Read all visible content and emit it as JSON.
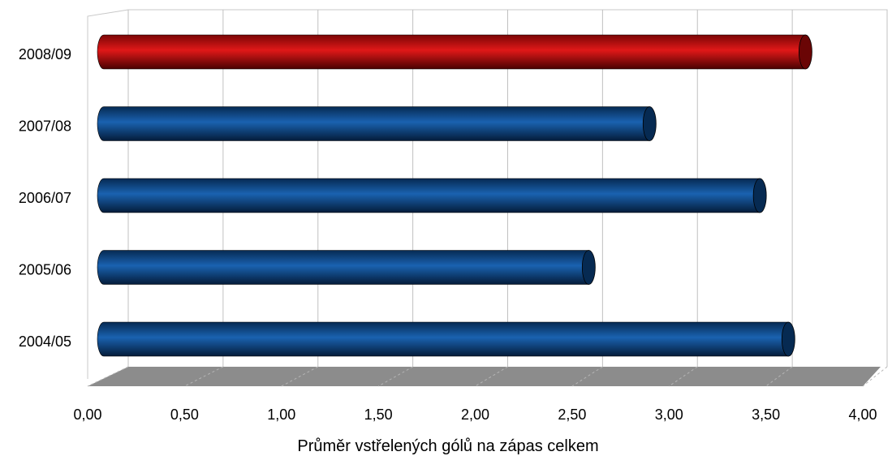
{
  "chart_data": {
    "type": "bar",
    "orientation": "horizontal",
    "three_d": true,
    "categories": [
      "2004/05",
      "2005/06",
      "2006/07",
      "2007/08",
      "2008/09"
    ],
    "values": [
      3.6,
      2.55,
      3.45,
      2.87,
      3.69
    ],
    "highlight_category": "2008/09",
    "xlabel": "Průměr vstřelených gólů na zápas celkem",
    "ylabel": "",
    "title": "",
    "xlim": [
      0,
      4
    ],
    "x_ticks": [
      "0,00",
      "0,50",
      "1,00",
      "1,50",
      "2,00",
      "2,50",
      "3,00",
      "3,50",
      "4,00"
    ],
    "grid": "vertical",
    "legend": "none",
    "colors": {
      "bar": "#0b4a8a",
      "bar_dark": "#062a52",
      "highlight": "#c81414",
      "highlight_dark": "#6a0505",
      "floor": "#8c8c8c",
      "grid": "#c0c0c0"
    }
  }
}
